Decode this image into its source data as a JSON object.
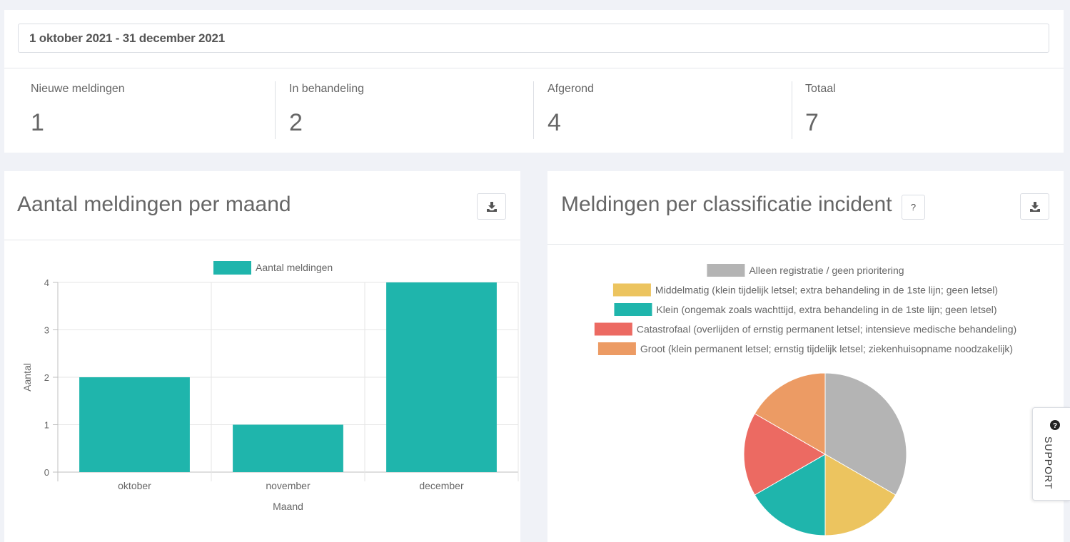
{
  "filters": {
    "date_range": "1 oktober 2021 - 31 december 2021"
  },
  "stats": [
    {
      "label": "Nieuwe meldingen",
      "value": "1"
    },
    {
      "label": "In behandeling",
      "value": "2"
    },
    {
      "label": "Afgerond",
      "value": "4"
    },
    {
      "label": "Totaal",
      "value": "7"
    }
  ],
  "panels": {
    "monthly": {
      "title": "Aantal meldingen per maand",
      "download_icon": "download-icon"
    },
    "classification": {
      "title": "Meldingen per classificatie incident",
      "help_label": "?",
      "download_icon": "download-icon"
    }
  },
  "chart_data": [
    {
      "type": "bar",
      "categories": [
        "oktober",
        "november",
        "december"
      ],
      "series": [
        {
          "name": "Aantal meldingen",
          "values": [
            2,
            1,
            4
          ],
          "color": "#1fb5ac"
        }
      ],
      "xlabel": "Maand",
      "ylabel": "Aantal",
      "ylim": [
        0,
        4
      ],
      "yticks": [
        "0",
        "1",
        "2",
        "3",
        "4"
      ],
      "grid": true,
      "legend": "top"
    },
    {
      "type": "pie",
      "labels": [
        "Alleen registratie / geen prioritering",
        "Middelmatig (klein tijdelijk letsel; extra behandeling in de 1ste lijn; geen letsel)",
        "Klein (ongemak zoals wachttijd, extra behandeling in de 1ste lijn; geen letsel)",
        "Catastrofaal (overlijden of ernstig permanent letsel; intensieve medische behandeling)",
        "Groot (klein permanent letsel; ernstig tijdelijk letsel; ziekenhuisopname noodzakelijk)"
      ],
      "values": [
        2,
        1,
        1,
        1,
        1
      ],
      "colors": [
        "#b4b4b4",
        "#ecc45f",
        "#1fb5ac",
        "#ec6a62",
        "#ec9b64"
      ],
      "legend": "top"
    }
  ],
  "support": {
    "label": "SUPPORT",
    "icon": "question-circle-icon"
  }
}
